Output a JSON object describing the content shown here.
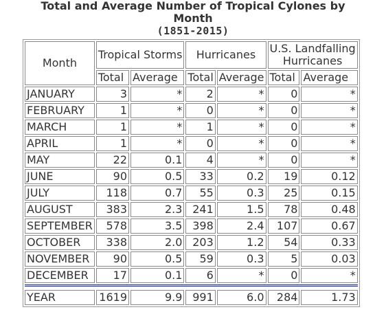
{
  "title": {
    "line1": "Total and Average Number of Tropical Cylones by",
    "line2": "Month",
    "line3": "(1851-2015)"
  },
  "header": {
    "month": "Month",
    "tropical_storms": "Tropical Storms",
    "hurricanes": "Hurricanes",
    "us_landfalling_line1": "U.S. Landfalling",
    "us_landfalling_line2": "Hurricanes",
    "sub": [
      "Total",
      "Average",
      "Total",
      "Average",
      "Total",
      "Average"
    ]
  },
  "rows": [
    {
      "month": "JANUARY",
      "ts_total": "3",
      "ts_avg": "*",
      "h_total": "2",
      "h_avg": "*",
      "us_total": "0",
      "us_avg": "*"
    },
    {
      "month": "FEBRUARY",
      "ts_total": "1",
      "ts_avg": "*",
      "h_total": "0",
      "h_avg": "*",
      "us_total": "0",
      "us_avg": "*"
    },
    {
      "month": "MARCH",
      "ts_total": "1",
      "ts_avg": "*",
      "h_total": "1",
      "h_avg": "*",
      "us_total": "0",
      "us_avg": "*"
    },
    {
      "month": "APRIL",
      "ts_total": "1",
      "ts_avg": "*",
      "h_total": "0",
      "h_avg": "*",
      "us_total": "0",
      "us_avg": "*"
    },
    {
      "month": "MAY",
      "ts_total": "22",
      "ts_avg": "0.1",
      "h_total": "4",
      "h_avg": "*",
      "us_total": "0",
      "us_avg": "*"
    },
    {
      "month": "JUNE",
      "ts_total": "90",
      "ts_avg": "0.5",
      "h_total": "33",
      "h_avg": "0.2",
      "us_total": "19",
      "us_avg": "0.12"
    },
    {
      "month": "JULY",
      "ts_total": "118",
      "ts_avg": "0.7",
      "h_total": "55",
      "h_avg": "0.3",
      "us_total": "25",
      "us_avg": "0.15"
    },
    {
      "month": "AUGUST",
      "ts_total": "383",
      "ts_avg": "2.3",
      "h_total": "241",
      "h_avg": "1.5",
      "us_total": "78",
      "us_avg": "0.48"
    },
    {
      "month": "SEPTEMBER",
      "ts_total": "578",
      "ts_avg": "3.5",
      "h_total": "398",
      "h_avg": "2.4",
      "us_total": "107",
      "us_avg": "0.67"
    },
    {
      "month": "OCTOBER",
      "ts_total": "338",
      "ts_avg": "2.0",
      "h_total": "203",
      "h_avg": "1.2",
      "us_total": "54",
      "us_avg": "0.33"
    },
    {
      "month": "NOVEMBER",
      "ts_total": "90",
      "ts_avg": "0.5",
      "h_total": "59",
      "h_avg": "0.3",
      "us_total": "5",
      "us_avg": "0.03"
    },
    {
      "month": "DECEMBER",
      "ts_total": "17",
      "ts_avg": "0.1",
      "h_total": "6",
      "h_avg": "*",
      "us_total": "0",
      "us_avg": "*"
    }
  ],
  "year_row": {
    "month": "YEAR",
    "ts_total": "1619",
    "ts_avg": "9.9",
    "h_total": "991",
    "h_avg": "6.0",
    "us_total": "284",
    "us_avg": "1.73"
  },
  "colors": {
    "separator": "#1f2a78",
    "text": "#333333",
    "border": "#888888"
  }
}
